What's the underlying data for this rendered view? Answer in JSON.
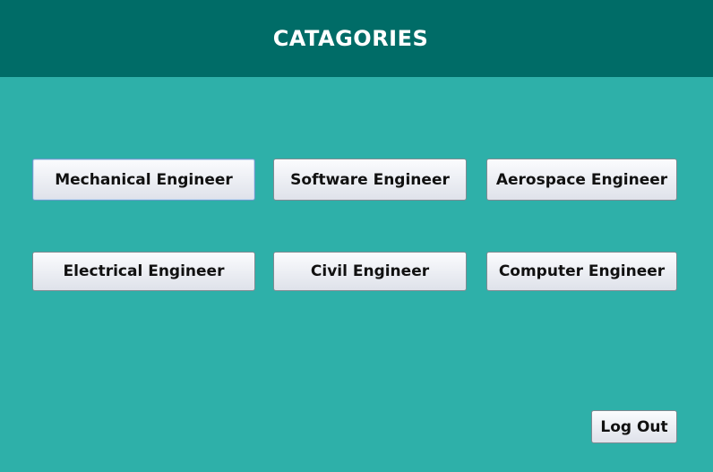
{
  "header": {
    "title": "CATAGORIES"
  },
  "categories": [
    {
      "label": "Mechanical Engineer"
    },
    {
      "label": "Software Engineer"
    },
    {
      "label": "Aerospace Engineer"
    },
    {
      "label": "Electrical Engineer"
    },
    {
      "label": "Civil Engineer"
    },
    {
      "label": "Computer Engineer"
    }
  ],
  "footer": {
    "logout_label": "Log Out"
  },
  "colors": {
    "header_bg": "#006c67",
    "page_bg": "#2eb0a9",
    "title_text": "#ffffff"
  }
}
